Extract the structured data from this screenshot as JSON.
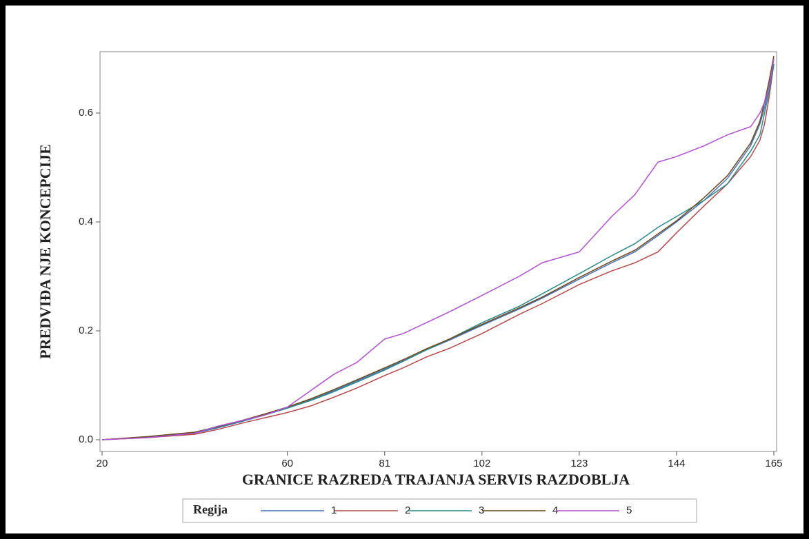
{
  "chart_data": {
    "type": "line",
    "x_label": "GRANICE RAZREDA TRAJANJA SERVIS RAZDOBLJA",
    "y_label": "PREDVIĐA NJE KONCEPCIJE",
    "legend_title": "Regija",
    "legend_position": "bottom",
    "x": [
      20,
      30,
      40,
      45,
      50,
      55,
      60,
      65,
      70,
      75,
      81,
      85,
      90,
      95,
      102,
      110,
      115,
      123,
      130,
      135,
      140,
      144,
      150,
      155,
      160,
      162,
      163,
      164,
      165
    ],
    "xlim": [
      20,
      165
    ],
    "xticks": [
      20,
      60,
      81,
      102,
      123,
      144,
      165
    ],
    "ylim": [
      0,
      0.7
    ],
    "yticks": [
      {
        "value": 0,
        "label": "0.0"
      },
      {
        "value": 0.2,
        "label": "0.2"
      },
      {
        "value": 0.4,
        "label": "0.4"
      },
      {
        "value": 0.6,
        "label": "0.6"
      }
    ],
    "series": [
      {
        "name": "1",
        "color": "#4a6fb5",
        "values": [
          0,
          0.005,
          0.012,
          0.022,
          0.033,
          0.045,
          0.058,
          0.073,
          0.09,
          0.108,
          0.13,
          0.145,
          0.165,
          0.183,
          0.21,
          0.24,
          0.26,
          0.295,
          0.325,
          0.345,
          0.375,
          0.4,
          0.44,
          0.48,
          0.54,
          0.58,
          0.61,
          0.65,
          0.7
        ]
      },
      {
        "name": "2",
        "color": "#b5484a",
        "values": [
          0,
          0.004,
          0.01,
          0.019,
          0.03,
          0.04,
          0.05,
          0.062,
          0.078,
          0.095,
          0.118,
          0.132,
          0.152,
          0.168,
          0.195,
          0.23,
          0.25,
          0.285,
          0.31,
          0.325,
          0.345,
          0.38,
          0.43,
          0.47,
          0.52,
          0.55,
          0.58,
          0.63,
          0.69
        ]
      },
      {
        "name": "3",
        "color": "#2a8a8a",
        "values": [
          0,
          0.005,
          0.013,
          0.023,
          0.034,
          0.046,
          0.058,
          0.072,
          0.088,
          0.106,
          0.128,
          0.144,
          0.165,
          0.185,
          0.215,
          0.245,
          0.268,
          0.305,
          0.338,
          0.36,
          0.39,
          0.41,
          0.44,
          0.47,
          0.53,
          0.56,
          0.6,
          0.64,
          0.69
        ]
      },
      {
        "name": "4",
        "color": "#6b4a1a",
        "values": [
          0,
          0.006,
          0.014,
          0.024,
          0.035,
          0.047,
          0.06,
          0.075,
          0.092,
          0.11,
          0.132,
          0.147,
          0.167,
          0.185,
          0.212,
          0.242,
          0.262,
          0.298,
          0.328,
          0.348,
          0.378,
          0.402,
          0.445,
          0.485,
          0.545,
          0.585,
          0.62,
          0.66,
          0.705
        ]
      },
      {
        "name": "5",
        "color": "#b050d0",
        "values": [
          0,
          0.004,
          0.012,
          0.025,
          0.035,
          0.045,
          0.06,
          0.09,
          0.12,
          0.142,
          0.185,
          0.195,
          0.215,
          0.235,
          0.265,
          0.3,
          0.325,
          0.345,
          0.41,
          0.45,
          0.51,
          0.52,
          0.54,
          0.56,
          0.575,
          0.6,
          0.62,
          0.65,
          0.7
        ]
      }
    ]
  }
}
